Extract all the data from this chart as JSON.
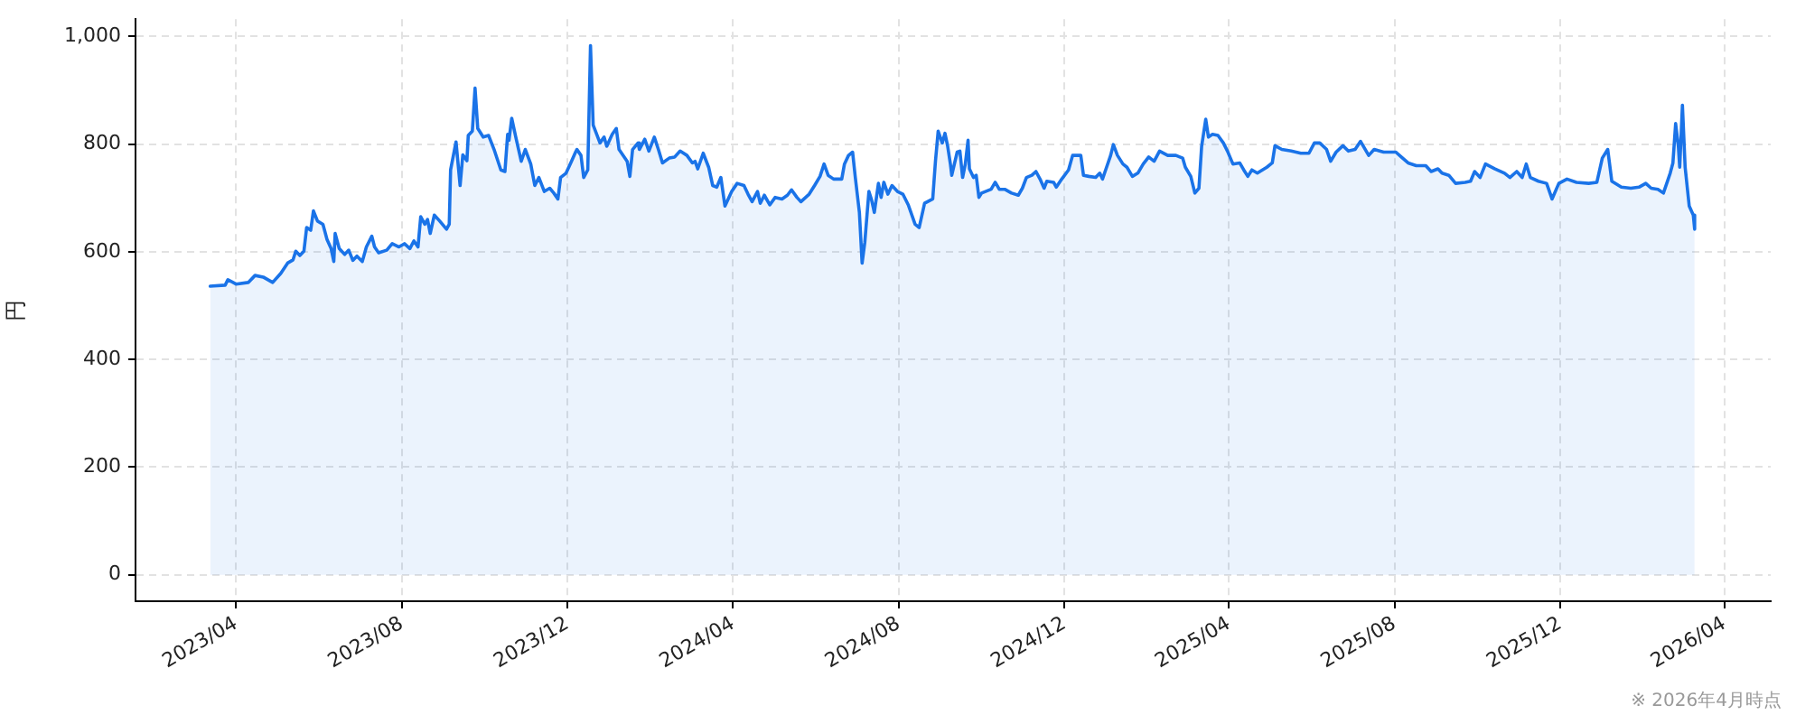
{
  "chart_data": {
    "type": "area",
    "ylabel": "円",
    "annotations": [
      "※ 2026年4月時点"
    ],
    "x": [
      "2023-03-13",
      "2023-03-24",
      "2023-03-26",
      "2023-04-01",
      "2023-04-10",
      "2023-04-15",
      "2023-04-21",
      "2023-04-28",
      "2023-05-04",
      "2023-05-09",
      "2023-05-13",
      "2023-05-15",
      "2023-05-18",
      "2023-05-21",
      "2023-05-23",
      "2023-05-26",
      "2023-05-28",
      "2023-05-31",
      "2023-06-04",
      "2023-06-07",
      "2023-06-10",
      "2023-06-12",
      "2023-06-13",
      "2023-06-16",
      "2023-06-20",
      "2023-06-23",
      "2023-06-26",
      "2023-06-29",
      "2023-07-03",
      "2023-07-06",
      "2023-07-10",
      "2023-07-12",
      "2023-07-15",
      "2023-07-21",
      "2023-07-25",
      "2023-07-30",
      "2023-08-03",
      "2023-08-07",
      "2023-08-10",
      "2023-08-13",
      "2023-08-15",
      "2023-08-18",
      "2023-08-20",
      "2023-08-22",
      "2023-08-25",
      "2023-08-29",
      "2023-09-03",
      "2023-09-05",
      "2023-09-06",
      "2023-09-10",
      "2023-09-13",
      "2023-09-15",
      "2023-09-18",
      "2023-09-19",
      "2023-09-22",
      "2023-09-24",
      "2023-09-26",
      "2023-09-30",
      "2023-10-04",
      "2023-10-08",
      "2023-10-13",
      "2023-10-16",
      "2023-10-18",
      "2023-10-19",
      "2023-10-21",
      "2023-10-24",
      "2023-10-28",
      "2023-10-31",
      "2023-11-04",
      "2023-11-07",
      "2023-11-10",
      "2023-11-14",
      "2023-11-18",
      "2023-11-21",
      "2023-11-24",
      "2023-11-26",
      "2023-11-30",
      "2023-12-04",
      "2023-12-07",
      "2023-12-08",
      "2023-12-11",
      "2023-12-13",
      "2023-12-16",
      "2023-12-18",
      "2023-12-20",
      "2023-12-25",
      "2023-12-28",
      "2023-12-30",
      "2024-01-03",
      "2024-01-06",
      "2024-01-08",
      "2024-01-14",
      "2024-01-16",
      "2024-01-18",
      "2024-01-22",
      "2024-01-23",
      "2024-01-27",
      "2024-01-30",
      "2024-02-03",
      "2024-02-06",
      "2024-02-09",
      "2024-02-14",
      "2024-02-18",
      "2024-02-22",
      "2024-02-27",
      "2024-03-02",
      "2024-03-04",
      "2024-03-06",
      "2024-03-10",
      "2024-03-14",
      "2024-03-17",
      "2024-03-20",
      "2024-03-23",
      "2024-03-26",
      "2024-03-31",
      "2024-04-04",
      "2024-04-09",
      "2024-04-12",
      "2024-04-15",
      "2024-04-19",
      "2024-04-21",
      "2024-04-24",
      "2024-04-28",
      "2024-05-02",
      "2024-05-07",
      "2024-05-11",
      "2024-05-14",
      "2024-05-18",
      "2024-05-21",
      "2024-05-27",
      "2024-05-31",
      "2024-06-04",
      "2024-06-07",
      "2024-06-10",
      "2024-06-14",
      "2024-06-20",
      "2024-06-22",
      "2024-06-25",
      "2024-06-28",
      "2024-06-30",
      "2024-07-03",
      "2024-07-05",
      "2024-07-07",
      "2024-07-10",
      "2024-07-12",
      "2024-07-14",
      "2024-07-17",
      "2024-07-19",
      "2024-07-21",
      "2024-07-24",
      "2024-07-27",
      "2024-07-31",
      "2024-08-04",
      "2024-08-08",
      "2024-08-13",
      "2024-08-16",
      "2024-08-20",
      "2024-08-26",
      "2024-08-28",
      "2024-08-30",
      "2024-09-02",
      "2024-09-04",
      "2024-09-06",
      "2024-09-08",
      "2024-09-09",
      "2024-09-13",
      "2024-09-15",
      "2024-09-17",
      "2024-09-19",
      "2024-09-21",
      "2024-09-22",
      "2024-09-25",
      "2024-09-27",
      "2024-09-29",
      "2024-10-01",
      "2024-10-08",
      "2024-10-11",
      "2024-10-14",
      "2024-10-18",
      "2024-10-23",
      "2024-10-28",
      "2024-10-31",
      "2024-11-03",
      "2024-11-07",
      "2024-11-10",
      "2024-11-13",
      "2024-11-16",
      "2024-11-18",
      "2024-11-23",
      "2024-11-25",
      "2024-11-29",
      "2024-12-04",
      "2024-12-07",
      "2024-12-13",
      "2024-12-15",
      "2024-12-19",
      "2024-12-24",
      "2024-12-27",
      "2024-12-29",
      "2025-01-01",
      "2025-01-04",
      "2025-01-06",
      "2025-01-09",
      "2025-01-13",
      "2025-01-16",
      "2025-01-20",
      "2025-01-24",
      "2025-01-28",
      "2025-02-01",
      "2025-02-05",
      "2025-02-09",
      "2025-02-15",
      "2025-02-21",
      "2025-02-26",
      "2025-02-28",
      "2025-03-04",
      "2025-03-07",
      "2025-03-10",
      "2025-03-12",
      "2025-03-15",
      "2025-03-17",
      "2025-03-20",
      "2025-03-24",
      "2025-03-28",
      "2025-03-31",
      "2025-04-04",
      "2025-04-09",
      "2025-04-12",
      "2025-04-15",
      "2025-04-18",
      "2025-04-22",
      "2025-04-29",
      "2025-05-03",
      "2025-05-05",
      "2025-05-10",
      "2025-05-17",
      "2025-05-24",
      "2025-05-30",
      "2025-06-03",
      "2025-06-07",
      "2025-06-12",
      "2025-06-15",
      "2025-06-19",
      "2025-06-24",
      "2025-06-28",
      "2025-07-03",
      "2025-07-07",
      "2025-07-13",
      "2025-07-17",
      "2025-07-24",
      "2025-08-02",
      "2025-08-06",
      "2025-08-11",
      "2025-08-17",
      "2025-08-24",
      "2025-08-28",
      "2025-09-02",
      "2025-09-05",
      "2025-09-10",
      "2025-09-15",
      "2025-09-22",
      "2025-09-26",
      "2025-09-29",
      "2025-10-03",
      "2025-10-07",
      "2025-10-14",
      "2025-10-21",
      "2025-10-25",
      "2025-10-30",
      "2025-11-03",
      "2025-11-06",
      "2025-11-09",
      "2025-11-15",
      "2025-11-21",
      "2025-11-25",
      "2025-11-30",
      "2025-12-06",
      "2025-12-13",
      "2025-12-22",
      "2025-12-28",
      "2026-01-01",
      "2026-01-05",
      "2026-01-08",
      "2026-01-15",
      "2026-01-22",
      "2026-01-28",
      "2026-02-02",
      "2026-02-06",
      "2026-02-11",
      "2026-02-15",
      "2026-02-20",
      "2026-02-22",
      "2026-02-24",
      "2026-02-26",
      "2026-02-27",
      "2026-03-01",
      "2026-03-03",
      "2026-03-06",
      "2026-03-09",
      "2026-03-10"
    ],
    "series": [
      {
        "color": "#1a73e8",
        "values": [
          536,
          538,
          548,
          540,
          543,
          556,
          553,
          543,
          560,
          579,
          585,
          601,
          593,
          601,
          645,
          640,
          676,
          657,
          651,
          623,
          606,
          582,
          634,
          606,
          595,
          603,
          584,
          592,
          582,
          609,
          629,
          609,
          598,
          603,
          615,
          609,
          615,
          606,
          620,
          609,
          665,
          651,
          660,
          634,
          668,
          657,
          642,
          651,
          752,
          804,
          723,
          780,
          769,
          816,
          824,
          904,
          829,
          813,
          816,
          790,
          752,
          749,
          818,
          807,
          848,
          813,
          768,
          790,
          763,
          723,
          738,
          712,
          718,
          709,
          698,
          738,
          746,
          768,
          785,
          790,
          779,
          738,
          752,
          983,
          835,
          802,
          813,
          796,
          818,
          829,
          790,
          768,
          740,
          790,
          802,
          790,
          809,
          787,
          813,
          790,
          765,
          774,
          776,
          787,
          779,
          765,
          768,
          754,
          783,
          757,
          723,
          720,
          738,
          685,
          712,
          727,
          723,
          707,
          693,
          712,
          690,
          705,
          687,
          701,
          698,
          705,
          715,
          701,
          693,
          707,
          723,
          740,
          763,
          742,
          735,
          735,
          763,
          779,
          785,
          738,
          673,
          579,
          618,
          712,
          696,
          673,
          727,
          701,
          729,
          707,
          723,
          712,
          707,
          687,
          651,
          645,
          690,
          698,
          768,
          824,
          802,
          820,
          796,
          763,
          742,
          785,
          787,
          738,
          763,
          807,
          754,
          738,
          742,
          701,
          709,
          716,
          729,
          716,
          716,
          709,
          705,
          718,
          738,
          742,
          749,
          735,
          718,
          731,
          729,
          720,
          735,
          752,
          779,
          779,
          742,
          740,
          738,
          746,
          735,
          757,
          779,
          799,
          779,
          763,
          757,
          740,
          746,
          763,
          776,
          768,
          787,
          779,
          779,
          774,
          757,
          740,
          709,
          718,
          796,
          846,
          813,
          818,
          816,
          802,
          787,
          763,
          765,
          752,
          740,
          752,
          746,
          757,
          765,
          797,
          790,
          787,
          783,
          783,
          802,
          802,
          790,
          768,
          785,
          797,
          787,
          790,
          805,
          779,
          790,
          785,
          785,
          776,
          765,
          760,
          760,
          749,
          754,
          746,
          742,
          727,
          729,
          731,
          749,
          738,
          763,
          754,
          746,
          738,
          749,
          738,
          763,
          738,
          731,
          727,
          698,
          727,
          735,
          729,
          727,
          729,
          774,
          790,
          731,
          720,
          718,
          720,
          727,
          718,
          716,
          709,
          746,
          765,
          838,
          796,
          757,
          872,
          757,
          685,
          668,
          642
        ]
      }
    ],
    "xlim": [
      "2023-01-17",
      "2026-05-05"
    ],
    "xticks": [
      {
        "value": "2023-04-01",
        "label": "2023/04"
      },
      {
        "value": "2023-08-01",
        "label": "2023/08"
      },
      {
        "value": "2023-12-01",
        "label": "2023/12"
      },
      {
        "value": "2024-04-01",
        "label": "2024/04"
      },
      {
        "value": "2024-08-01",
        "label": "2024/08"
      },
      {
        "value": "2024-12-01",
        "label": "2024/12"
      },
      {
        "value": "2025-04-01",
        "label": "2025/04"
      },
      {
        "value": "2025-08-01",
        "label": "2025/08"
      },
      {
        "value": "2025-12-01",
        "label": "2025/12"
      },
      {
        "value": "2026-04-01",
        "label": "2026/04"
      }
    ],
    "ylim": [
      -49,
      1032
    ],
    "yticks": [
      0,
      200,
      400,
      600,
      800,
      {
        "value": 1000,
        "label": "1,000"
      }
    ],
    "grid": true,
    "marker": "none",
    "line_style": "solid"
  }
}
